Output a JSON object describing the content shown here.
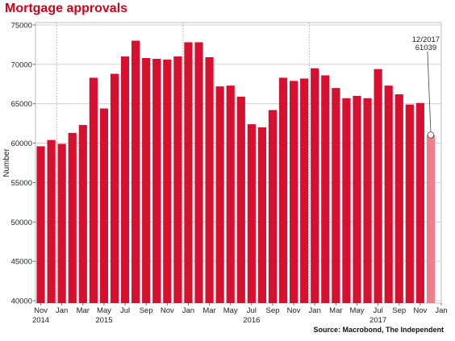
{
  "title": "Mortgage approvals",
  "source": "Source: Macrobond, The Independent",
  "colors": {
    "bar": "#d7102f",
    "bar_last": "#ee7f8c",
    "title": "#d0021b"
  },
  "chart_data": {
    "type": "bar",
    "ylabel": "Number",
    "ylim": [
      39700,
      75300
    ],
    "yticks": [
      40000,
      45000,
      50000,
      55000,
      60000,
      65000,
      70000,
      75000
    ],
    "grid": true,
    "categories": [
      "2014-11",
      "2014-12",
      "2015-01",
      "2015-02",
      "2015-03",
      "2015-04",
      "2015-05",
      "2015-06",
      "2015-07",
      "2015-08",
      "2015-09",
      "2015-10",
      "2015-11",
      "2015-12",
      "2016-01",
      "2016-02",
      "2016-03",
      "2016-04",
      "2016-05",
      "2016-06",
      "2016-07",
      "2016-08",
      "2016-09",
      "2016-10",
      "2016-11",
      "2016-12",
      "2017-01",
      "2017-02",
      "2017-03",
      "2017-04",
      "2017-05",
      "2017-06",
      "2017-07",
      "2017-08",
      "2017-09",
      "2017-10",
      "2017-11",
      "2017-12"
    ],
    "values": [
      59600,
      60400,
      59900,
      61300,
      62300,
      68300,
      64400,
      68800,
      71000,
      73000,
      70800,
      70700,
      70600,
      71000,
      72800,
      72800,
      70900,
      67200,
      67300,
      65900,
      62400,
      62000,
      64200,
      68300,
      67900,
      68200,
      69500,
      68600,
      67000,
      65700,
      66000,
      65700,
      69400,
      67300,
      66200,
      64900,
      65100,
      61039
    ],
    "x_tick_labels": [
      {
        "index": 0,
        "month": "Nov",
        "year": "2014"
      },
      {
        "index": 2,
        "month": "Jan",
        "year": ""
      },
      {
        "index": 4,
        "month": "Mar",
        "year": ""
      },
      {
        "index": 6,
        "month": "May",
        "year": "2015"
      },
      {
        "index": 8,
        "month": "Jul",
        "year": ""
      },
      {
        "index": 10,
        "month": "Sep",
        "year": ""
      },
      {
        "index": 12,
        "month": "Nov",
        "year": ""
      },
      {
        "index": 14,
        "month": "Jan",
        "year": ""
      },
      {
        "index": 16,
        "month": "Mar",
        "year": ""
      },
      {
        "index": 18,
        "month": "May",
        "year": ""
      },
      {
        "index": 20,
        "month": "Jul",
        "year": "2016"
      },
      {
        "index": 22,
        "month": "Sep",
        "year": ""
      },
      {
        "index": 24,
        "month": "Nov",
        "year": ""
      },
      {
        "index": 26,
        "month": "Jan",
        "year": ""
      },
      {
        "index": 28,
        "month": "Mar",
        "year": ""
      },
      {
        "index": 30,
        "month": "May",
        "year": ""
      },
      {
        "index": 32,
        "month": "Jul",
        "year": "2017"
      },
      {
        "index": 34,
        "month": "Sep",
        "year": ""
      },
      {
        "index": 36,
        "month": "Nov",
        "year": ""
      },
      {
        "index": 38,
        "month": "Jan",
        "year": ""
      }
    ],
    "year_dividers": [
      1.5,
      13.5,
      25.5
    ],
    "highlight_index": 37,
    "annotation": {
      "index": 37,
      "line1": "12/2017",
      "line2": "61039"
    }
  }
}
